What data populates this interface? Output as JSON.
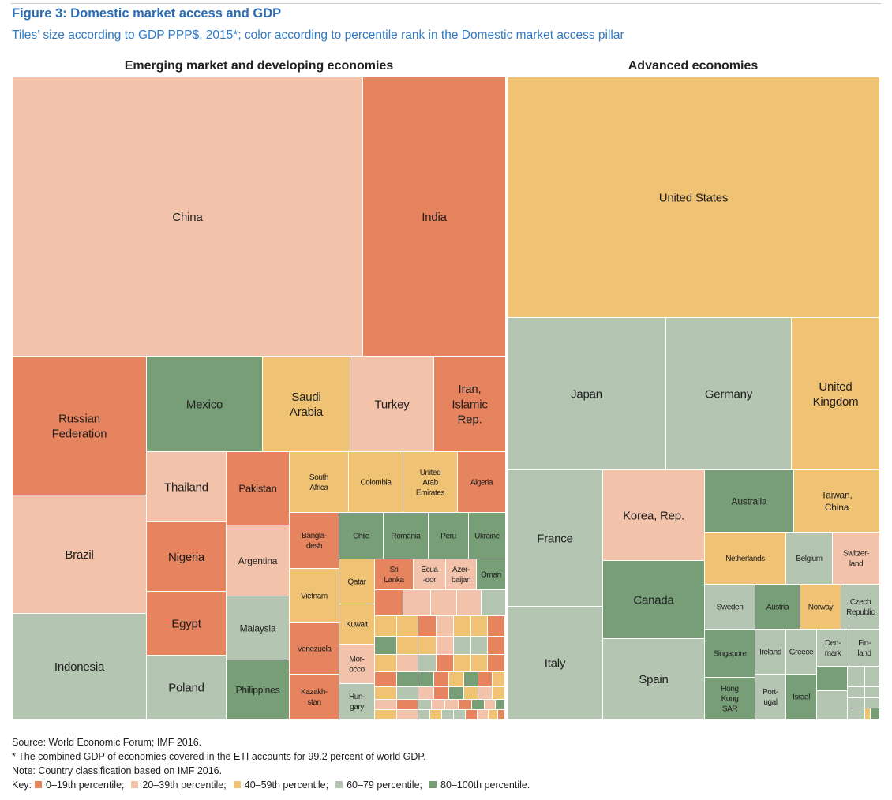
{
  "figure": {
    "title": "Figure 3: Domestic market access and GDP",
    "subtitle": "Tiles’ size according to GDP PPP$, 2015*; color according to percentile rank in the Domestic market access pillar"
  },
  "notes": {
    "source": "Source: World Economic Forum; IMF 2016.",
    "footnote": "* The combined GDP of economies covered in the ETI accounts for 99.2 percent of world GDP.",
    "classification": "Note: Country classification based on IMF 2016.",
    "key_label": "Key:",
    "key": [
      {
        "label": "0–19th percentile;",
        "color": "#e5845e"
      },
      {
        "label": "20–39th percentile;",
        "color": "#f2c3aa"
      },
      {
        "label": "40–59th percentile;",
        "color": "#f0c274"
      },
      {
        "label": "60–79 percentile;",
        "color": "#b4c6b2"
      },
      {
        "label": "80–100th percentile.",
        "color": "#789e78"
      }
    ]
  },
  "chart_data": {
    "type": "treemap",
    "size_measure": "GDP PPP$, 2015",
    "color_measure": "percentile rank in the Domestic market access pillar",
    "colors": {
      "0-19": "#e5845e",
      "20-39": "#f2c3aa",
      "40-59": "#f0c274",
      "60-79": "#b4c6b2",
      "80-100": "#789e78"
    },
    "groups": [
      {
        "name": "Emerging market and developing economies",
        "tiles": [
          {
            "label": "China",
            "band": "20-39"
          },
          {
            "label": "India",
            "band": "0-19"
          },
          {
            "label": "Russian Federation",
            "band": "0-19"
          },
          {
            "label": "Mexico",
            "band": "80-100"
          },
          {
            "label": "Saudi Arabia",
            "band": "40-59"
          },
          {
            "label": "Turkey",
            "band": "20-39"
          },
          {
            "label": "Iran, Islamic Rep.",
            "band": "0-19"
          },
          {
            "label": "Brazil",
            "band": "20-39"
          },
          {
            "label": "Indonesia",
            "band": "60-79"
          },
          {
            "label": "Thailand",
            "band": "20-39"
          },
          {
            "label": "Pakistan",
            "band": "0-19"
          },
          {
            "label": "Nigeria",
            "band": "0-19"
          },
          {
            "label": "Argentina",
            "band": "20-39"
          },
          {
            "label": "Egypt",
            "band": "0-19"
          },
          {
            "label": "Malaysia",
            "band": "60-79"
          },
          {
            "label": "Poland",
            "band": "60-79"
          },
          {
            "label": "Philippines",
            "band": "80-100"
          },
          {
            "label": "South Africa",
            "band": "40-59"
          },
          {
            "label": "Colombia",
            "band": "40-59"
          },
          {
            "label": "United Arab Emirates",
            "band": "40-59"
          },
          {
            "label": "Algeria",
            "band": "0-19"
          },
          {
            "label": "Bangladesh",
            "band": "0-19"
          },
          {
            "label": "Vietnam",
            "band": "40-59"
          },
          {
            "label": "Venezuela",
            "band": "0-19"
          },
          {
            "label": "Kazakhstan",
            "band": "0-19"
          },
          {
            "label": "Chile",
            "band": "80-100"
          },
          {
            "label": "Romania",
            "band": "80-100"
          },
          {
            "label": "Peru",
            "band": "80-100"
          },
          {
            "label": "Ukraine",
            "band": "80-100"
          },
          {
            "label": "Qatar",
            "band": "40-59"
          },
          {
            "label": "Sri Lanka",
            "band": "0-19"
          },
          {
            "label": "Ecuador",
            "band": "20-39"
          },
          {
            "label": "Azerbaijan",
            "band": "20-39"
          },
          {
            "label": "Oman",
            "band": "80-100"
          },
          {
            "label": "Kuwait",
            "band": "40-59"
          },
          {
            "label": "Morocco",
            "band": "20-39"
          },
          {
            "label": "Hungary",
            "band": "60-79"
          }
        ]
      },
      {
        "name": "Advanced economies",
        "tiles": [
          {
            "label": "United States",
            "band": "40-59"
          },
          {
            "label": "Japan",
            "band": "60-79"
          },
          {
            "label": "Germany",
            "band": "60-79"
          },
          {
            "label": "United Kingdom",
            "band": "40-59"
          },
          {
            "label": "France",
            "band": "60-79"
          },
          {
            "label": "Korea, Rep.",
            "band": "20-39"
          },
          {
            "label": "Australia",
            "band": "80-100"
          },
          {
            "label": "Taiwan, China",
            "band": "40-59"
          },
          {
            "label": "Canada",
            "band": "80-100"
          },
          {
            "label": "Italy",
            "band": "60-79"
          },
          {
            "label": "Spain",
            "band": "60-79"
          },
          {
            "label": "Netherlands",
            "band": "40-59"
          },
          {
            "label": "Belgium",
            "band": "60-79"
          },
          {
            "label": "Switzerland",
            "band": "20-39"
          },
          {
            "label": "Sweden",
            "band": "60-79"
          },
          {
            "label": "Austria",
            "band": "80-100"
          },
          {
            "label": "Norway",
            "band": "40-59"
          },
          {
            "label": "Czech Republic",
            "band": "60-79"
          },
          {
            "label": "Singapore",
            "band": "80-100"
          },
          {
            "label": "Ireland",
            "band": "60-79"
          },
          {
            "label": "Greece",
            "band": "60-79"
          },
          {
            "label": "Denmark",
            "band": "60-79"
          },
          {
            "label": "Finland",
            "band": "60-79"
          },
          {
            "label": "Hong Kong SAR",
            "band": "80-100"
          },
          {
            "label": "Portugal",
            "band": "60-79"
          },
          {
            "label": "Israel",
            "band": "80-100"
          }
        ]
      }
    ]
  }
}
